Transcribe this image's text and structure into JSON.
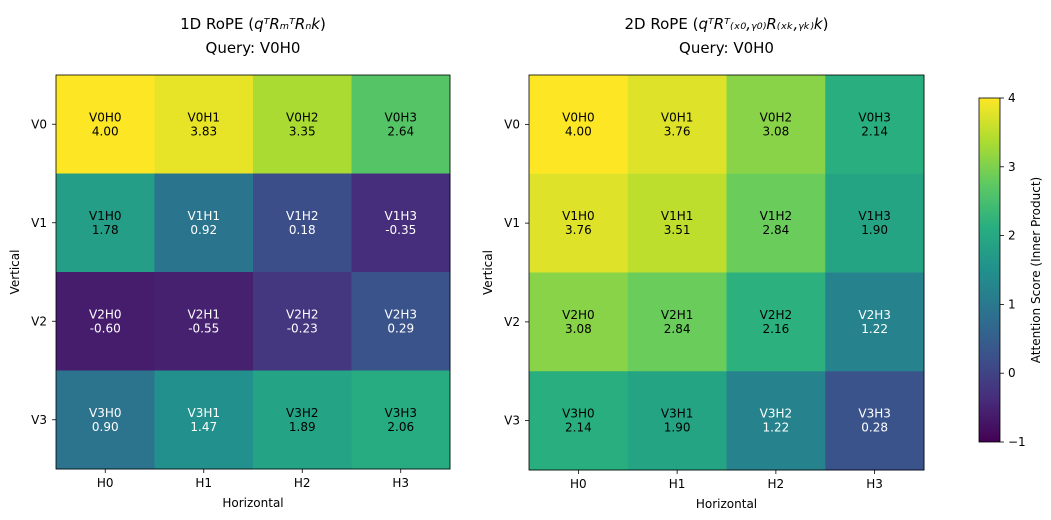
{
  "chart_data": [
    {
      "type": "heatmap",
      "title_prefix": "1D RoPE (",
      "title_math": "qᵀRₘᵀRₙk",
      "title_suffix": ")",
      "subtitle": "Query: V0H0",
      "xlabel": "Horizontal",
      "ylabel": "Vertical",
      "x_ticks": [
        "H0",
        "H1",
        "H2",
        "H3"
      ],
      "y_ticks": [
        "V0",
        "V1",
        "V2",
        "V3"
      ],
      "cell_names": [
        [
          "V0H0",
          "V0H1",
          "V0H2",
          "V0H3"
        ],
        [
          "V1H0",
          "V1H1",
          "V1H2",
          "V1H3"
        ],
        [
          "V2H0",
          "V2H1",
          "V2H2",
          "V2H3"
        ],
        [
          "V3H0",
          "V3H1",
          "V3H2",
          "V3H3"
        ]
      ],
      "values": [
        [
          4.0,
          3.83,
          3.35,
          2.64
        ],
        [
          1.78,
          0.92,
          0.18,
          -0.35
        ],
        [
          -0.6,
          -0.55,
          -0.23,
          0.29
        ],
        [
          0.9,
          1.47,
          1.89,
          2.06
        ]
      ],
      "value_labels": [
        [
          "4.00",
          "3.83",
          "3.35",
          "2.64"
        ],
        [
          "1.78",
          "0.92",
          "0.18",
          "-0.35"
        ],
        [
          "-0.60",
          "-0.55",
          "-0.23",
          "0.29"
        ],
        [
          "0.90",
          "1.47",
          "1.89",
          "2.06"
        ]
      ],
      "colormap": "viridis",
      "vmin": -1,
      "vmax": 4
    },
    {
      "type": "heatmap",
      "title_prefix": "2D RoPE (",
      "title_math": "qᵀRᵀ₍ₓ₀,ᵧ₀₎R₍ₓₖ,ᵧₖ₎k",
      "title_suffix": ")",
      "subtitle": "Query: V0H0",
      "xlabel": "Horizontal",
      "ylabel": "Vertical",
      "x_ticks": [
        "H0",
        "H1",
        "H2",
        "H3"
      ],
      "y_ticks": [
        "V0",
        "V1",
        "V2",
        "V3"
      ],
      "cell_names": [
        [
          "V0H0",
          "V0H1",
          "V0H2",
          "V0H3"
        ],
        [
          "V1H0",
          "V1H1",
          "V1H2",
          "V1H3"
        ],
        [
          "V2H0",
          "V2H1",
          "V2H2",
          "V2H3"
        ],
        [
          "V3H0",
          "V3H1",
          "V3H2",
          "V3H3"
        ]
      ],
      "values": [
        [
          4.0,
          3.76,
          3.08,
          2.14
        ],
        [
          3.76,
          3.51,
          2.84,
          1.9
        ],
        [
          3.08,
          2.84,
          2.16,
          1.22
        ],
        [
          2.14,
          1.9,
          1.22,
          0.28
        ]
      ],
      "value_labels": [
        [
          "4.00",
          "3.76",
          "3.08",
          "2.14"
        ],
        [
          "3.76",
          "3.51",
          "2.84",
          "1.90"
        ],
        [
          "3.08",
          "2.84",
          "2.16",
          "1.22"
        ],
        [
          "2.14",
          "1.90",
          "1.22",
          "0.28"
        ]
      ],
      "colormap": "viridis",
      "vmin": -1,
      "vmax": 4
    }
  ],
  "colorbar": {
    "label": "Attention Score (Inner Product)",
    "ticks": [
      -1,
      0,
      1,
      2,
      3,
      4
    ],
    "tick_labels": [
      "−1",
      "0",
      "1",
      "2",
      "3",
      "4"
    ],
    "vmin": -1,
    "vmax": 4
  }
}
